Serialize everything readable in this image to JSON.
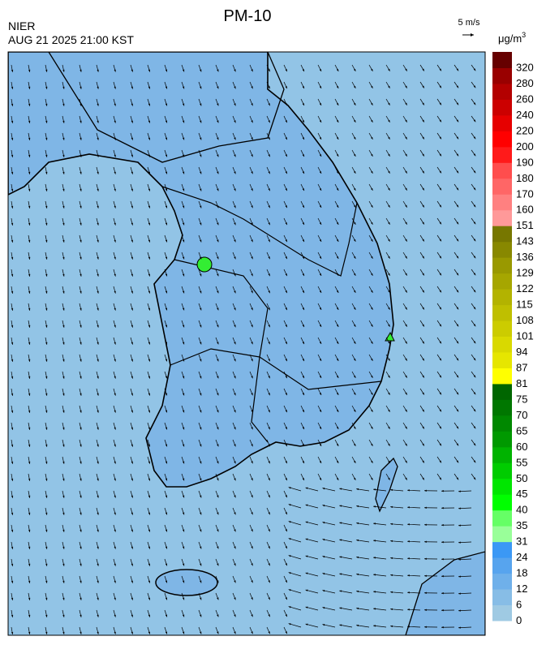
{
  "header": {
    "title": "PM-10",
    "agency": "NIER",
    "datetime": "AUG 21 2025 21:00 KST",
    "wind_scale": "5 m/s",
    "unit": "μg/m",
    "unit_power": "3"
  },
  "colorbar": [
    {
      "label": 0,
      "color": "#9fcae3"
    },
    {
      "label": 6,
      "color": "#87bde6"
    },
    {
      "label": 12,
      "color": "#6fb0ea"
    },
    {
      "label": 18,
      "color": "#57a4ee"
    },
    {
      "label": 24,
      "color": "#3b98f5"
    },
    {
      "label": 31,
      "color": "#99ff99"
    },
    {
      "label": 35,
      "color": "#66ff66"
    },
    {
      "label": 40,
      "color": "#00ff00"
    },
    {
      "label": 45,
      "color": "#00e600"
    },
    {
      "label": 50,
      "color": "#00cc00"
    },
    {
      "label": 55,
      "color": "#00b300"
    },
    {
      "label": 60,
      "color": "#009900"
    },
    {
      "label": 65,
      "color": "#008800"
    },
    {
      "label": 70,
      "color": "#007700"
    },
    {
      "label": 75,
      "color": "#006600"
    },
    {
      "label": 81,
      "color": "#ffff00"
    },
    {
      "label": 87,
      "color": "#e6e600"
    },
    {
      "label": 94,
      "color": "#d9d900"
    },
    {
      "label": 101,
      "color": "#cccc00"
    },
    {
      "label": 108,
      "color": "#bfbf00"
    },
    {
      "label": 115,
      "color": "#b3b300"
    },
    {
      "label": 122,
      "color": "#a6a600"
    },
    {
      "label": 129,
      "color": "#999900"
    },
    {
      "label": 136,
      "color": "#888800"
    },
    {
      "label": 143,
      "color": "#777700"
    },
    {
      "label": 151,
      "color": "#ff9999"
    },
    {
      "label": 160,
      "color": "#ff8080"
    },
    {
      "label": 170,
      "color": "#ff6666"
    },
    {
      "label": 180,
      "color": "#ff4d4d"
    },
    {
      "label": 190,
      "color": "#ff1a1a"
    },
    {
      "label": 200,
      "color": "#ff0000"
    },
    {
      "label": 220,
      "color": "#e60000"
    },
    {
      "label": 240,
      "color": "#cc0000"
    },
    {
      "label": 260,
      "color": "#b30000"
    },
    {
      "label": 280,
      "color": "#990000"
    },
    {
      "label": 320,
      "color": "#660000"
    }
  ]
}
